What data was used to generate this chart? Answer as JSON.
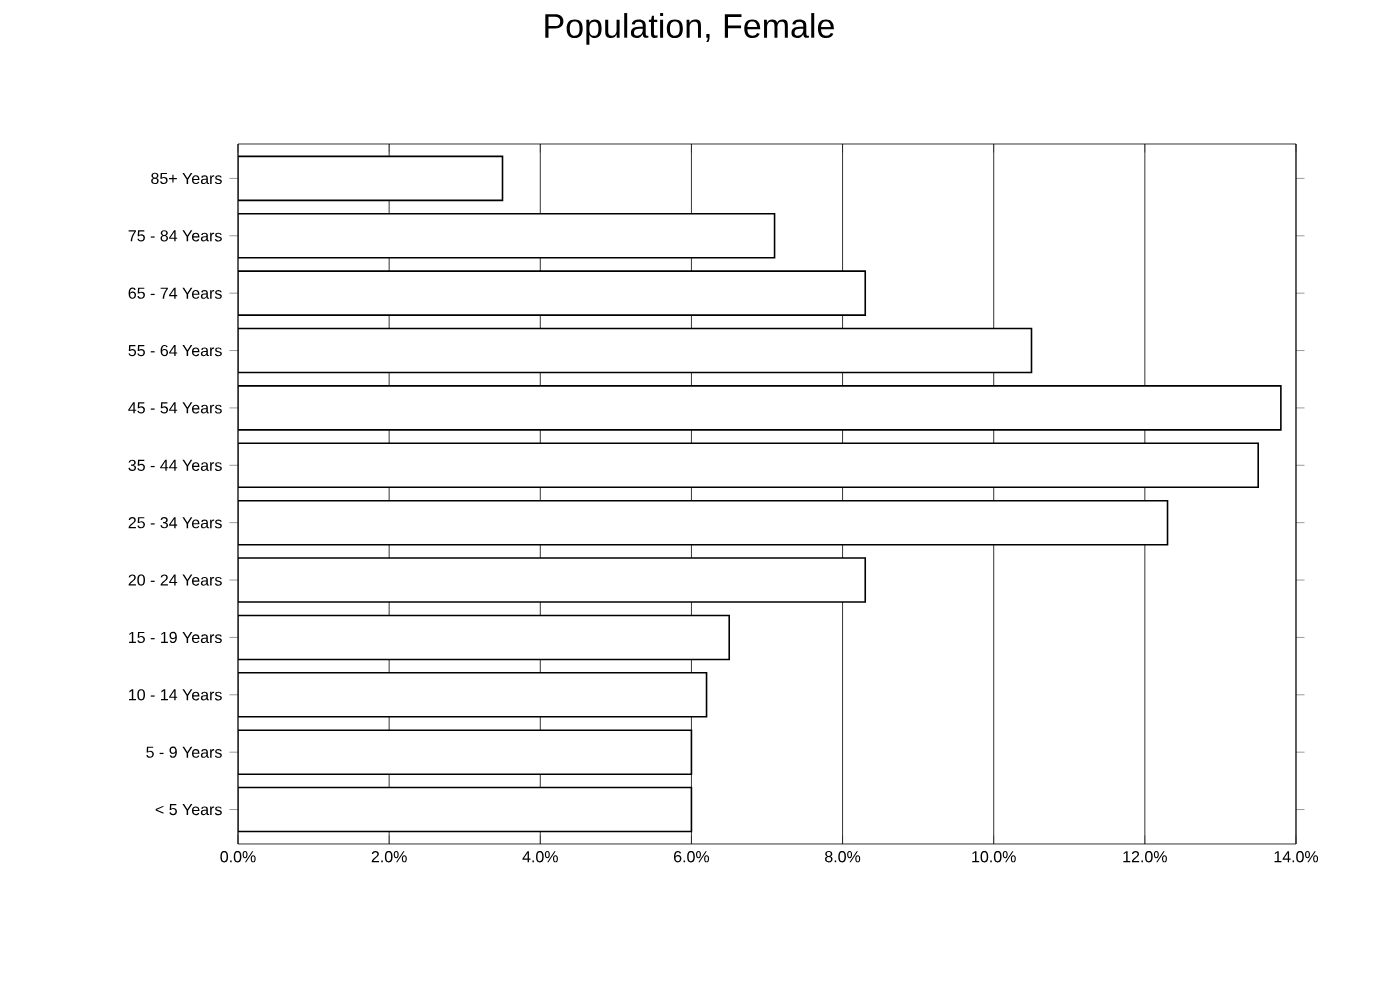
{
  "chart_data": {
    "type": "bar",
    "orientation": "horizontal",
    "title": "Population, Female",
    "categories": [
      "85+ Years",
      "75 - 84 Years",
      "65 - 74 Years",
      "55 - 64 Years",
      "45 - 54 Years",
      "35 - 44 Years",
      "25 - 34 Years",
      "20 - 24 Years",
      "15 - 19 Years",
      "10 - 14 Years",
      "5 - 9 Years",
      "< 5 Years"
    ],
    "values": [
      3.5,
      7.1,
      8.3,
      10.5,
      13.8,
      13.5,
      12.3,
      8.3,
      6.5,
      6.2,
      6.0,
      6.0
    ],
    "color": "#ffffff",
    "xlim": [
      0,
      14
    ],
    "xticks": [
      {
        "value": 0,
        "label": "0.0%"
      },
      {
        "value": 2,
        "label": "2.0%"
      },
      {
        "value": 4,
        "label": "4.0%"
      },
      {
        "value": 6,
        "label": "6.0%"
      },
      {
        "value": 8,
        "label": "8.0%"
      },
      {
        "value": 10,
        "label": "10.0%"
      },
      {
        "value": 12,
        "label": "12.0%"
      },
      {
        "value": 14,
        "label": "14.0%"
      }
    ],
    "grid": "x"
  }
}
